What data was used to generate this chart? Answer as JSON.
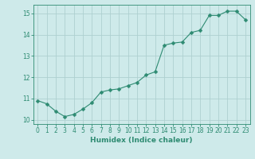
{
  "x": [
    0,
    1,
    2,
    3,
    4,
    5,
    6,
    7,
    8,
    9,
    10,
    11,
    12,
    13,
    14,
    15,
    16,
    17,
    18,
    19,
    20,
    21,
    22,
    23
  ],
  "y": [
    10.9,
    10.75,
    10.4,
    10.15,
    10.25,
    10.5,
    10.8,
    11.3,
    11.4,
    11.45,
    11.6,
    11.75,
    12.1,
    12.25,
    13.5,
    13.6,
    13.65,
    14.1,
    14.2,
    14.9,
    14.9,
    15.1,
    15.1,
    14.7
  ],
  "line_color": "#2e8b72",
  "marker": "D",
  "marker_size": 2.5,
  "background_color": "#ceeaea",
  "grid_color": "#aed0d0",
  "tick_color": "#2e8b72",
  "xlabel": "Humidex (Indice chaleur)",
  "xlim": [
    -0.5,
    23.5
  ],
  "ylim": [
    9.8,
    15.4
  ],
  "yticks": [
    10,
    11,
    12,
    13,
    14,
    15
  ],
  "xticks": [
    0,
    1,
    2,
    3,
    4,
    5,
    6,
    7,
    8,
    9,
    10,
    11,
    12,
    13,
    14,
    15,
    16,
    17,
    18,
    19,
    20,
    21,
    22,
    23
  ],
  "figsize": [
    3.2,
    2.0
  ],
  "dpi": 100,
  "font_color": "#2e8b72"
}
